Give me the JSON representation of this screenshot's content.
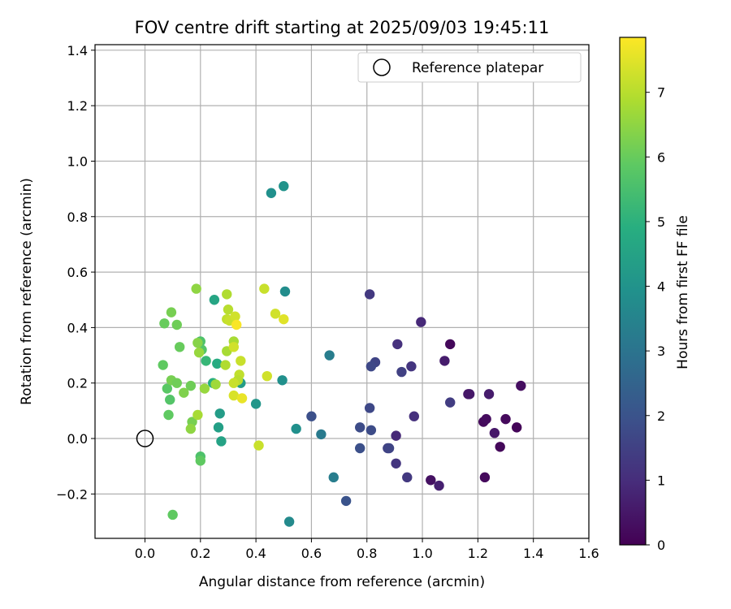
{
  "chart_data": {
    "type": "scatter",
    "title": "FOV centre drift starting at 2025/09/03 19:45:11",
    "xlabel": "Angular distance from reference (arcmin)",
    "ylabel": "Rotation from reference (arcmin)",
    "xlim": [
      -0.18,
      1.6
    ],
    "ylim": [
      -0.36,
      1.42
    ],
    "xticks": [
      0.0,
      0.2,
      0.4,
      0.6,
      0.8,
      1.0,
      1.2,
      1.4,
      1.6
    ],
    "xtick_labels": [
      "0.0",
      "0.2",
      "0.4",
      "0.6",
      "0.8",
      "1.0",
      "1.2",
      "1.4",
      "1.6"
    ],
    "yticks": [
      -0.2,
      0.0,
      0.2,
      0.4,
      0.6,
      0.8,
      1.0,
      1.2,
      1.4
    ],
    "ytick_labels": [
      "−0.2",
      "0.0",
      "0.2",
      "0.4",
      "0.6",
      "0.8",
      "1.0",
      "1.2",
      "1.4"
    ],
    "grid": true,
    "legend": {
      "label": "Reference platepar",
      "location": "top-right"
    },
    "reference_point": {
      "x": 0.0,
      "y": 0.0
    },
    "colorbar": {
      "label": "Hours from first FF file",
      "range": [
        0,
        7.85
      ],
      "ticks": [
        0,
        1,
        2,
        3,
        4,
        5,
        6,
        7
      ],
      "tick_labels": [
        "0",
        "1",
        "2",
        "3",
        "4",
        "5",
        "6",
        "7"
      ],
      "colormap": "viridis"
    },
    "points": [
      {
        "x": 1.22,
        "y": 0.06,
        "h": 0.2
      },
      {
        "x": 1.23,
        "y": 0.07,
        "h": 0.25
      },
      {
        "x": 1.26,
        "y": 0.02,
        "h": 0.5
      },
      {
        "x": 1.28,
        "y": -0.03,
        "h": 0.15
      },
      {
        "x": 1.3,
        "y": 0.07,
        "h": 0.2
      },
      {
        "x": 1.34,
        "y": 0.04,
        "h": 0.1
      },
      {
        "x": 1.355,
        "y": 0.19,
        "h": 0.3
      },
      {
        "x": 1.24,
        "y": 0.16,
        "h": 0.6
      },
      {
        "x": 1.17,
        "y": 0.16,
        "h": 0.55
      },
      {
        "x": 1.165,
        "y": 0.16,
        "h": 0.5
      },
      {
        "x": 1.225,
        "y": -0.14,
        "h": 0.2
      },
      {
        "x": 1.03,
        "y": -0.15,
        "h": 0.35
      },
      {
        "x": 1.06,
        "y": -0.17,
        "h": 0.7
      },
      {
        "x": 1.1,
        "y": 0.34,
        "h": 0.15
      },
      {
        "x": 1.08,
        "y": 0.28,
        "h": 0.6
      },
      {
        "x": 1.1,
        "y": 0.13,
        "h": 1.4
      },
      {
        "x": 0.995,
        "y": 0.42,
        "h": 0.9
      },
      {
        "x": 0.97,
        "y": 0.08,
        "h": 1.1
      },
      {
        "x": 0.96,
        "y": 0.26,
        "h": 1.2
      },
      {
        "x": 0.925,
        "y": 0.24,
        "h": 1.5
      },
      {
        "x": 0.91,
        "y": 0.34,
        "h": 1.1
      },
      {
        "x": 0.905,
        "y": 0.01,
        "h": 0.9
      },
      {
        "x": 0.905,
        "y": -0.09,
        "h": 1.2
      },
      {
        "x": 0.945,
        "y": -0.14,
        "h": 1.3
      },
      {
        "x": 0.875,
        "y": -0.035,
        "h": 1.5
      },
      {
        "x": 0.88,
        "y": -0.035,
        "h": 1.6
      },
      {
        "x": 0.83,
        "y": 0.275,
        "h": 1.6
      },
      {
        "x": 0.815,
        "y": 0.26,
        "h": 1.7
      },
      {
        "x": 0.81,
        "y": 0.52,
        "h": 1.3
      },
      {
        "x": 0.81,
        "y": 0.11,
        "h": 1.7
      },
      {
        "x": 0.815,
        "y": 0.03,
        "h": 1.8
      },
      {
        "x": 0.775,
        "y": 0.04,
        "h": 1.8
      },
      {
        "x": 0.775,
        "y": -0.035,
        "h": 1.9
      },
      {
        "x": 0.725,
        "y": -0.225,
        "h": 2.0
      },
      {
        "x": 0.6,
        "y": 0.08,
        "h": 1.9
      },
      {
        "x": 0.68,
        "y": -0.14,
        "h": 3.3
      },
      {
        "x": 0.665,
        "y": 0.3,
        "h": 3.3
      },
      {
        "x": 0.635,
        "y": 0.015,
        "h": 3.2
      },
      {
        "x": 0.545,
        "y": 0.035,
        "h": 3.9
      },
      {
        "x": 0.52,
        "y": -0.3,
        "h": 3.7
      },
      {
        "x": 0.5,
        "y": 0.91,
        "h": 4.0
      },
      {
        "x": 0.455,
        "y": 0.885,
        "h": 3.9
      },
      {
        "x": 0.505,
        "y": 0.53,
        "h": 3.8
      },
      {
        "x": 0.495,
        "y": 0.21,
        "h": 3.9
      },
      {
        "x": 0.4,
        "y": 0.125,
        "h": 4.1
      },
      {
        "x": 0.345,
        "y": 0.2,
        "h": 4.3
      },
      {
        "x": 0.27,
        "y": 0.09,
        "h": 4.3
      },
      {
        "x": 0.265,
        "y": 0.04,
        "h": 4.4
      },
      {
        "x": 0.275,
        "y": -0.01,
        "h": 4.5
      },
      {
        "x": 0.25,
        "y": 0.5,
        "h": 4.6
      },
      {
        "x": 0.26,
        "y": 0.27,
        "h": 4.8
      },
      {
        "x": 0.245,
        "y": 0.2,
        "h": 4.9
      },
      {
        "x": 0.22,
        "y": 0.28,
        "h": 5.2
      },
      {
        "x": 0.2,
        "y": 0.35,
        "h": 5.6
      },
      {
        "x": 0.205,
        "y": 0.32,
        "h": 5.7
      },
      {
        "x": 0.2,
        "y": -0.065,
        "h": 5.6
      },
      {
        "x": 0.2,
        "y": -0.08,
        "h": 5.9
      },
      {
        "x": 0.085,
        "y": 0.085,
        "h": 5.9
      },
      {
        "x": 0.09,
        "y": 0.14,
        "h": 5.7
      },
      {
        "x": 0.08,
        "y": 0.18,
        "h": 5.8
      },
      {
        "x": 0.095,
        "y": 0.21,
        "h": 6.2
      },
      {
        "x": 0.115,
        "y": 0.2,
        "h": 6.1
      },
      {
        "x": 0.065,
        "y": 0.265,
        "h": 5.9
      },
      {
        "x": 0.125,
        "y": 0.33,
        "h": 6.0
      },
      {
        "x": 0.115,
        "y": 0.41,
        "h": 6.1
      },
      {
        "x": 0.07,
        "y": 0.415,
        "h": 6.0
      },
      {
        "x": 0.095,
        "y": 0.455,
        "h": 6.2
      },
      {
        "x": 0.1,
        "y": -0.275,
        "h": 5.9
      },
      {
        "x": 0.14,
        "y": 0.165,
        "h": 6.3
      },
      {
        "x": 0.165,
        "y": 0.19,
        "h": 6.1
      },
      {
        "x": 0.17,
        "y": 0.06,
        "h": 6.2
      },
      {
        "x": 0.165,
        "y": 0.035,
        "h": 6.5
      },
      {
        "x": 0.19,
        "y": 0.085,
        "h": 6.8
      },
      {
        "x": 0.185,
        "y": 0.54,
        "h": 6.5
      },
      {
        "x": 0.19,
        "y": 0.345,
        "h": 6.4
      },
      {
        "x": 0.195,
        "y": 0.31,
        "h": 6.6
      },
      {
        "x": 0.215,
        "y": 0.18,
        "h": 6.6
      },
      {
        "x": 0.255,
        "y": 0.195,
        "h": 6.7
      },
      {
        "x": 0.295,
        "y": 0.52,
        "h": 6.9
      },
      {
        "x": 0.3,
        "y": 0.465,
        "h": 7.0
      },
      {
        "x": 0.295,
        "y": 0.43,
        "h": 7.1
      },
      {
        "x": 0.305,
        "y": 0.425,
        "h": 7.2
      },
      {
        "x": 0.295,
        "y": 0.315,
        "h": 6.8
      },
      {
        "x": 0.29,
        "y": 0.265,
        "h": 6.9
      },
      {
        "x": 0.32,
        "y": 0.35,
        "h": 6.8
      },
      {
        "x": 0.325,
        "y": 0.44,
        "h": 7.3
      },
      {
        "x": 0.33,
        "y": 0.41,
        "h": 7.8
      },
      {
        "x": 0.32,
        "y": 0.33,
        "h": 7.3
      },
      {
        "x": 0.345,
        "y": 0.28,
        "h": 7.2
      },
      {
        "x": 0.34,
        "y": 0.23,
        "h": 7.1
      },
      {
        "x": 0.335,
        "y": 0.21,
        "h": 7.0
      },
      {
        "x": 0.32,
        "y": 0.2,
        "h": 7.2
      },
      {
        "x": 0.32,
        "y": 0.155,
        "h": 7.4
      },
      {
        "x": 0.35,
        "y": 0.145,
        "h": 7.6
      },
      {
        "x": 0.43,
        "y": 0.54,
        "h": 7.2
      },
      {
        "x": 0.47,
        "y": 0.45,
        "h": 7.3
      },
      {
        "x": 0.5,
        "y": 0.43,
        "h": 7.5
      },
      {
        "x": 0.44,
        "y": 0.225,
        "h": 7.3
      },
      {
        "x": 0.41,
        "y": -0.025,
        "h": 7.2
      }
    ]
  }
}
